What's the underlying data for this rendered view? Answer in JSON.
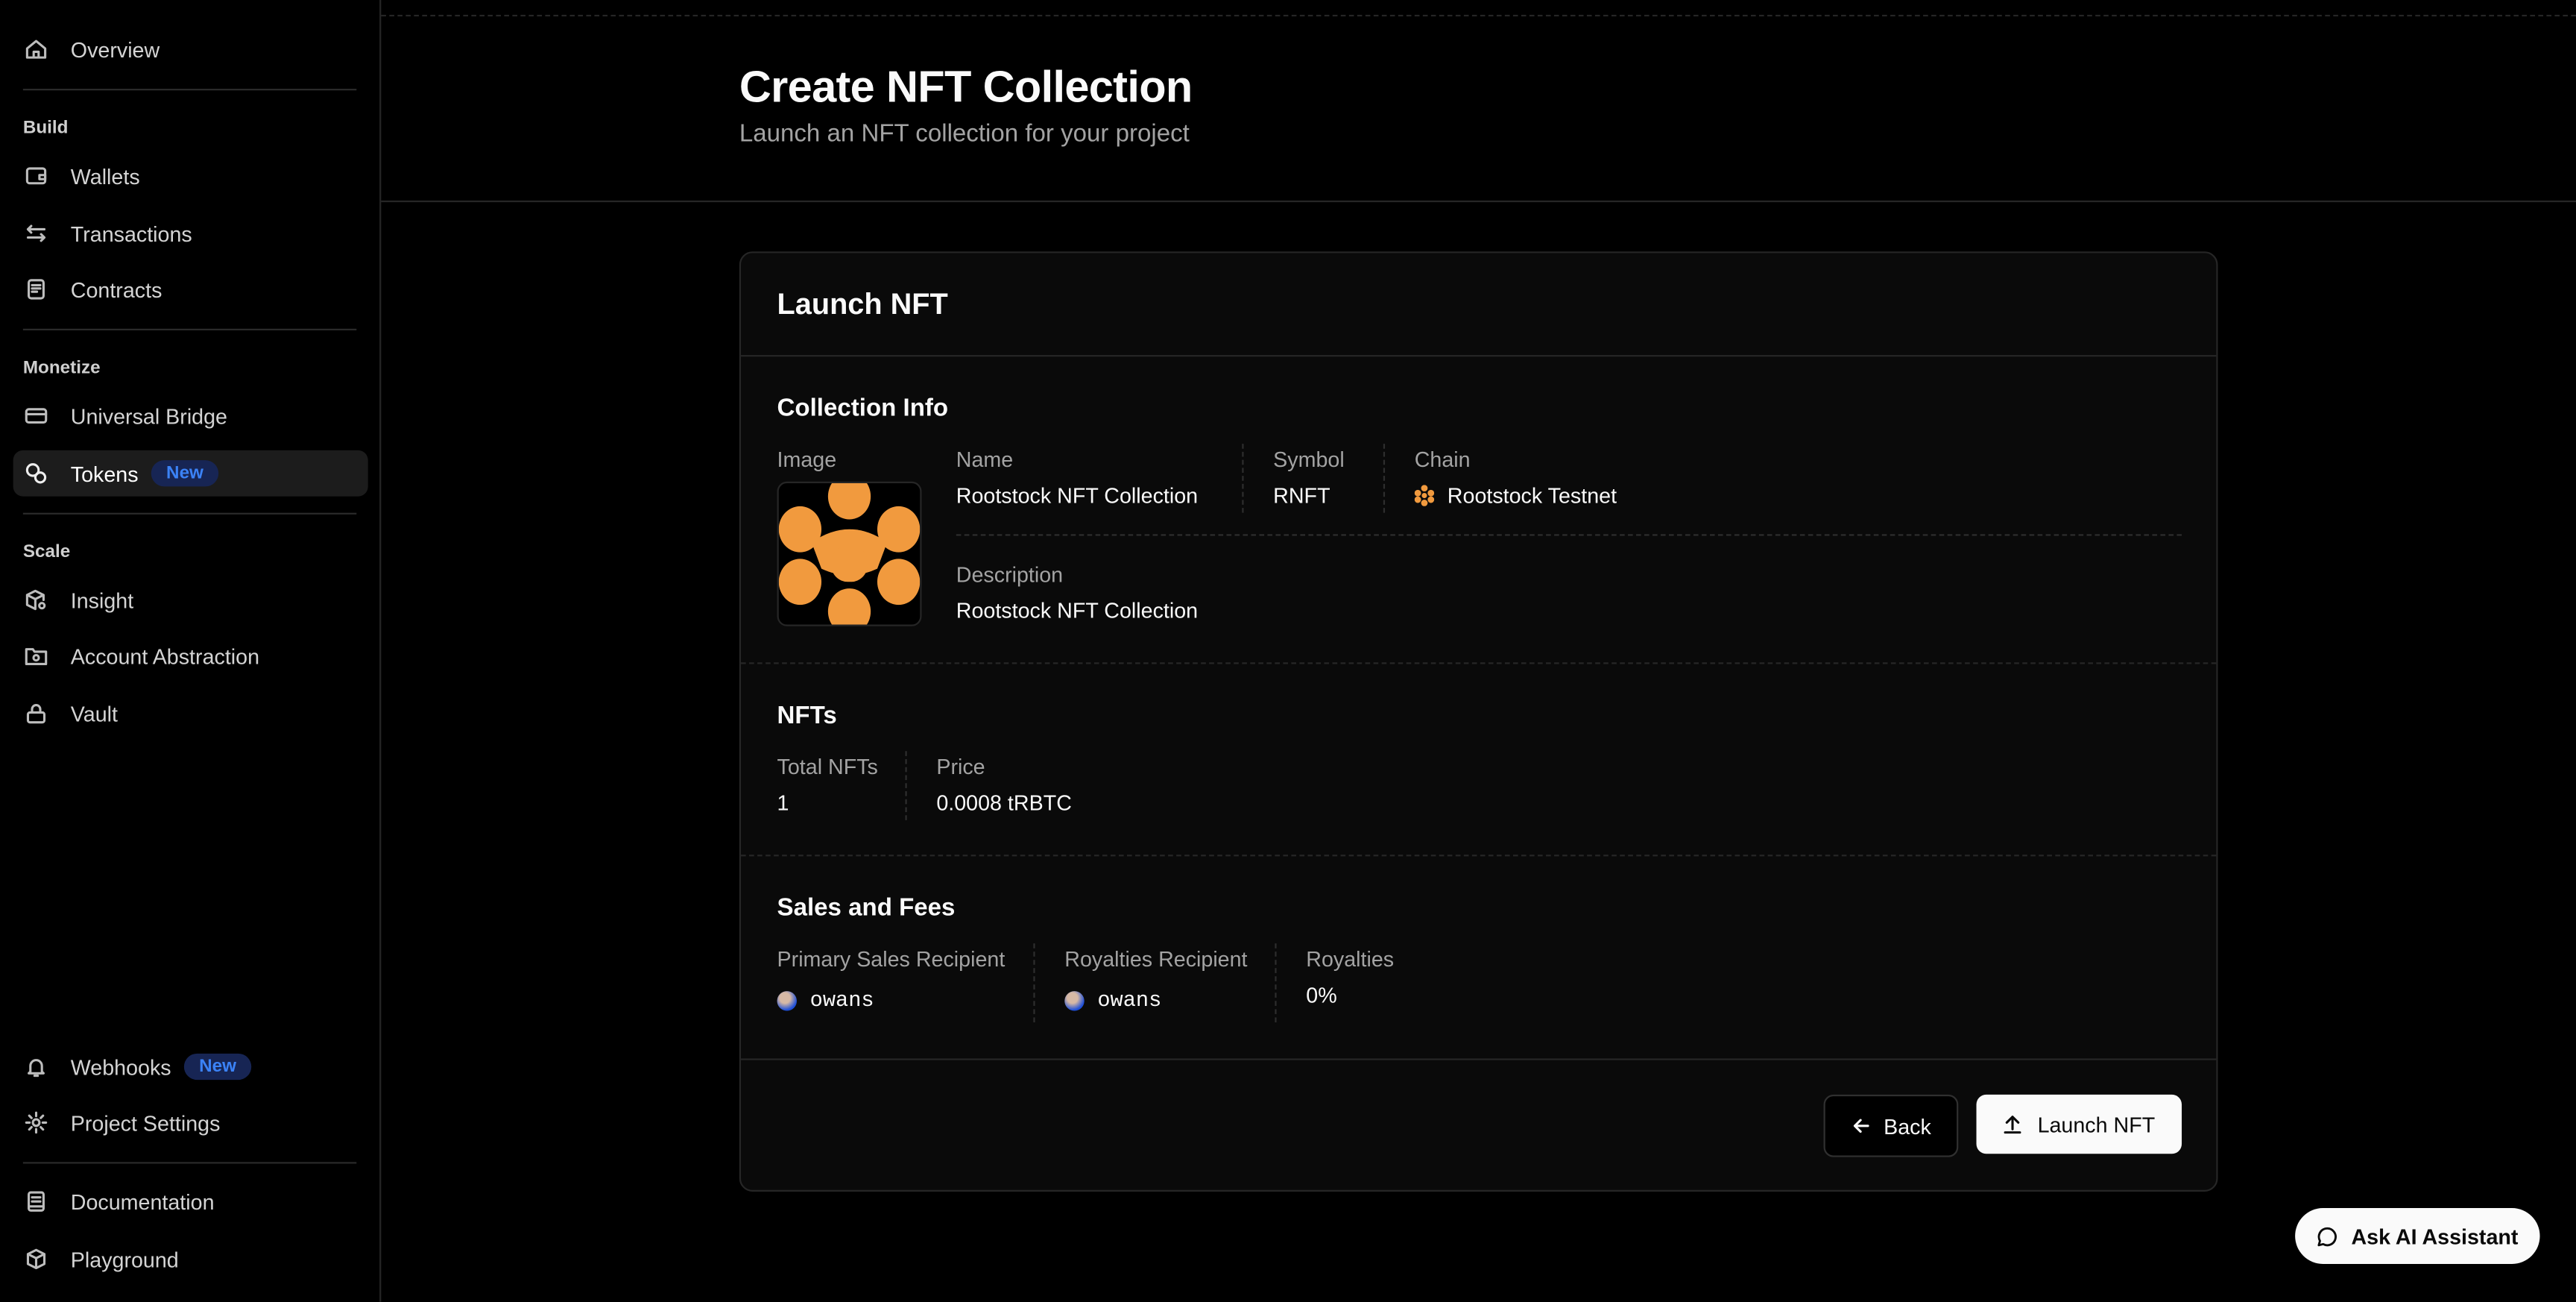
{
  "sidebar": {
    "overview": "Overview",
    "sections": {
      "build": "Build",
      "monetize": "Monetize",
      "scale": "Scale"
    },
    "items": {
      "wallets": "Wallets",
      "transactions": "Transactions",
      "contracts": "Contracts",
      "universal_bridge": "Universal Bridge",
      "tokens": "Tokens",
      "insight": "Insight",
      "account_abstraction": "Account Abstraction",
      "vault": "Vault",
      "webhooks": "Webhooks",
      "project_settings": "Project Settings",
      "documentation": "Documentation",
      "playground": "Playground"
    },
    "new_badge": "New",
    "active_item": "Tokens",
    "badge_color": "#3b82f6"
  },
  "header": {
    "title": "Create NFT Collection",
    "subtitle": "Launch an NFT collection for your project"
  },
  "card": {
    "title": "Launch NFT",
    "collection_info": {
      "heading": "Collection Info",
      "image_label": "Image",
      "name_label": "Name",
      "name": "Rootstock NFT Collection",
      "symbol_label": "Symbol",
      "symbol": "RNFT",
      "chain_label": "Chain",
      "chain": "Rootstock Testnet",
      "description_label": "Description",
      "description": "Rootstock NFT Collection",
      "brand_color": "#f19a3e"
    },
    "nfts": {
      "heading": "NFTs",
      "total_label": "Total NFTs",
      "total": "1",
      "price_label": "Price",
      "price": "0.0008 tRBTC"
    },
    "sales": {
      "heading": "Sales and Fees",
      "primary_label": "Primary Sales Recipient",
      "primary": "owans",
      "royalties_recipient_label": "Royalties Recipient",
      "royalties_recipient": "owans",
      "royalties_label": "Royalties",
      "royalties": "0%"
    },
    "back_button": "Back",
    "launch_button": "Launch NFT"
  },
  "assistant_button": "Ask AI Assistant"
}
